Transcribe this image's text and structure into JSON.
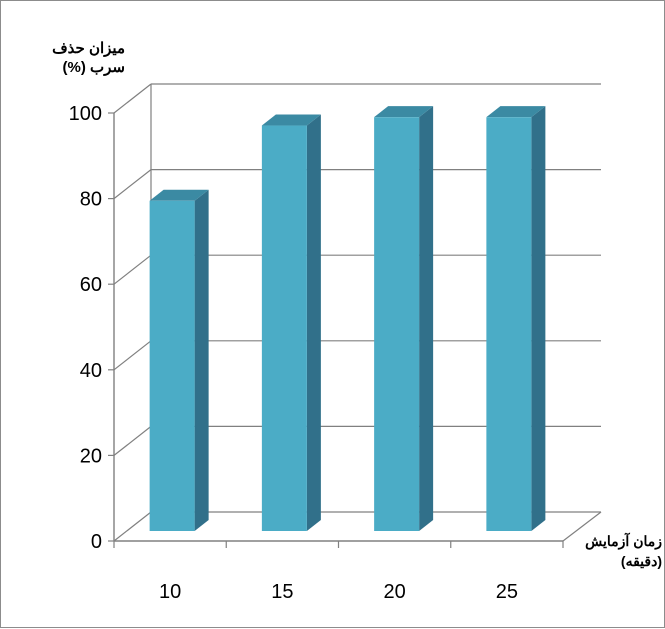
{
  "chart_data": {
    "type": "bar",
    "categories": [
      "10",
      "15",
      "20",
      "25"
    ],
    "values": [
      79,
      97,
      99,
      99
    ],
    "ylabel": [
      "میزان حذف",
      "سرب (%)"
    ],
    "xlabel": [
      "زمان آزمایش",
      "(دقیقه)"
    ],
    "ylim": [
      0,
      100
    ],
    "yticks": [
      0,
      20,
      40,
      60,
      80,
      100
    ],
    "grid": true,
    "three_d": true,
    "colors": {
      "bar_front": "#4bacc6",
      "bar_side": "#31708a",
      "bar_top": "#3b8aa3",
      "grid": "#808080",
      "axis": "#808080"
    }
  }
}
